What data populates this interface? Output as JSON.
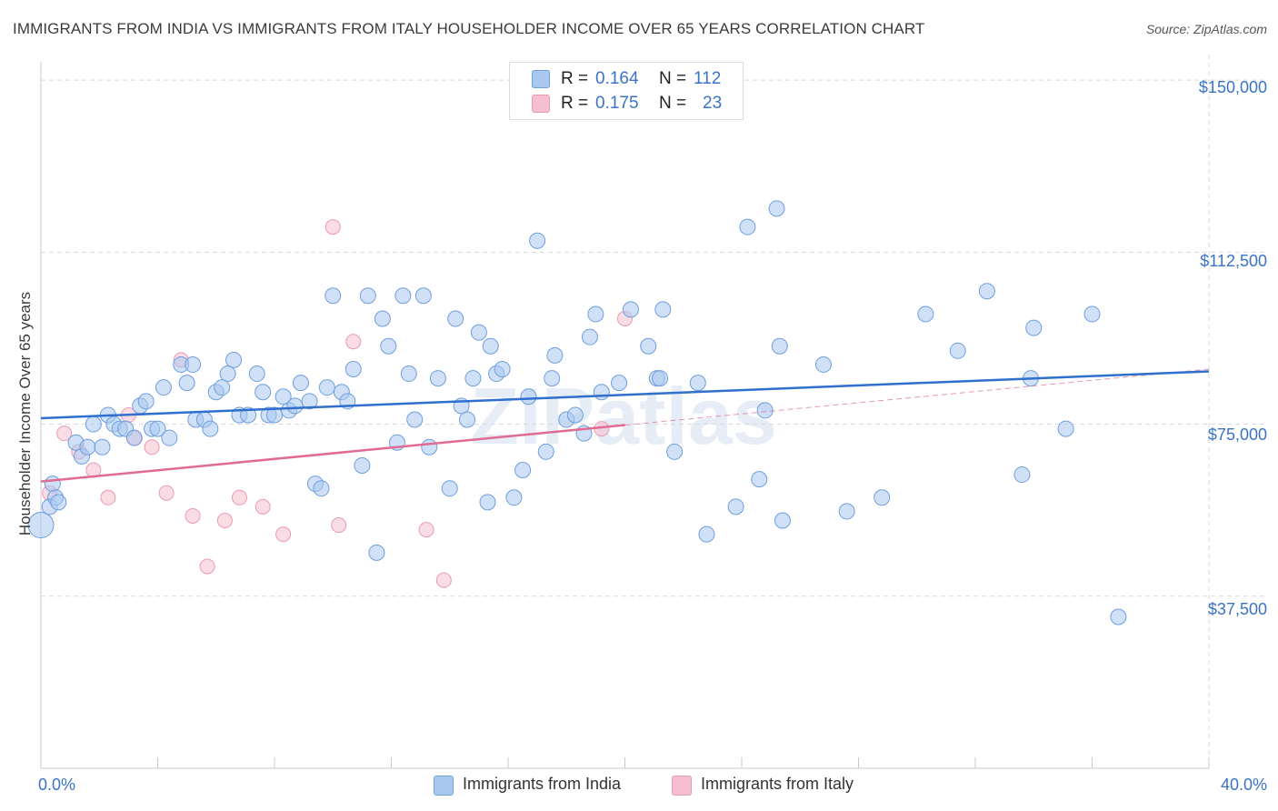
{
  "title": "IMMIGRANTS FROM INDIA VS IMMIGRANTS FROM ITALY HOUSEHOLDER INCOME OVER 65 YEARS CORRELATION CHART",
  "source": "Source: ZipAtlas.com",
  "watermark": "ZIPatlas",
  "colors": {
    "india_fill": "#a9c8f0",
    "india_stroke": "#6f9fdc",
    "india_line": "#2f6fce",
    "italy_fill": "#f6bfd0",
    "italy_stroke": "#e99ab4",
    "italy_line": "#e06b94",
    "tick_text": "#3a73c8",
    "grid": "#d9d9d9"
  },
  "legend": {
    "india": {
      "r_label": "R =",
      "r_value": "0.164",
      "n_label": "N =",
      "n_value": "112",
      "name": "Immigrants from India"
    },
    "italy": {
      "r_label": "R =",
      "r_value": "0.175",
      "n_label": "N =",
      "n_value": "23",
      "name": "Immigrants from Italy"
    }
  },
  "chart_data": {
    "type": "scatter",
    "title": "IMMIGRANTS FROM INDIA VS IMMIGRANTS FROM ITALY HOUSEHOLDER INCOME OVER 65 YEARS CORRELATION CHART",
    "xlabel": "",
    "ylabel": "Householder Income Over 65 years",
    "xlim": [
      0,
      40
    ],
    "ylim": [
      0,
      152000
    ],
    "x_tick_labels": [
      "0.0%",
      "40.0%"
    ],
    "y_ticks": [
      37500,
      75000,
      112500,
      150000
    ],
    "y_tick_labels": [
      "$37,500",
      "$75,000",
      "$112,500",
      "$150,000"
    ],
    "grid": true,
    "legend_position": "top-center",
    "series": [
      {
        "name": "Immigrants from India",
        "r": 0.164,
        "n": 112,
        "trend": {
          "x": [
            0,
            40
          ],
          "y": [
            76300,
            86500
          ]
        },
        "points": [
          [
            0.0,
            53000
          ],
          [
            0.3,
            57000
          ],
          [
            0.4,
            62000
          ],
          [
            0.5,
            59000
          ],
          [
            0.6,
            58000
          ],
          [
            1.2,
            71000
          ],
          [
            1.4,
            68000
          ],
          [
            1.6,
            70000
          ],
          [
            1.8,
            75000
          ],
          [
            2.1,
            70000
          ],
          [
            2.3,
            77000
          ],
          [
            2.5,
            75000
          ],
          [
            2.7,
            74000
          ],
          [
            2.9,
            74000
          ],
          [
            3.2,
            72000
          ],
          [
            3.4,
            79000
          ],
          [
            3.6,
            80000
          ],
          [
            3.8,
            74000
          ],
          [
            4.0,
            74000
          ],
          [
            4.2,
            83000
          ],
          [
            4.4,
            72000
          ],
          [
            4.8,
            88000
          ],
          [
            5.0,
            84000
          ],
          [
            5.2,
            88000
          ],
          [
            5.3,
            76000
          ],
          [
            5.6,
            76000
          ],
          [
            5.8,
            74000
          ],
          [
            6.0,
            82000
          ],
          [
            6.2,
            83000
          ],
          [
            6.4,
            86000
          ],
          [
            6.6,
            89000
          ],
          [
            6.8,
            77000
          ],
          [
            7.1,
            77000
          ],
          [
            7.4,
            86000
          ],
          [
            7.6,
            82000
          ],
          [
            7.8,
            77000
          ],
          [
            8.0,
            77000
          ],
          [
            8.3,
            81000
          ],
          [
            8.5,
            78000
          ],
          [
            8.7,
            79000
          ],
          [
            8.9,
            84000
          ],
          [
            9.2,
            80000
          ],
          [
            9.4,
            62000
          ],
          [
            9.6,
            61000
          ],
          [
            9.8,
            83000
          ],
          [
            10.0,
            103000
          ],
          [
            10.3,
            82000
          ],
          [
            10.5,
            80000
          ],
          [
            10.7,
            87000
          ],
          [
            11.0,
            66000
          ],
          [
            11.2,
            103000
          ],
          [
            11.5,
            47000
          ],
          [
            11.7,
            98000
          ],
          [
            11.9,
            92000
          ],
          [
            12.2,
            71000
          ],
          [
            12.4,
            103000
          ],
          [
            12.6,
            86000
          ],
          [
            12.8,
            76000
          ],
          [
            13.1,
            103000
          ],
          [
            13.3,
            70000
          ],
          [
            13.6,
            85000
          ],
          [
            14.0,
            61000
          ],
          [
            14.2,
            98000
          ],
          [
            14.4,
            79000
          ],
          [
            14.6,
            76000
          ],
          [
            14.8,
            85000
          ],
          [
            15.0,
            95000
          ],
          [
            15.3,
            58000
          ],
          [
            15.4,
            92000
          ],
          [
            15.6,
            86000
          ],
          [
            15.8,
            87000
          ],
          [
            16.2,
            59000
          ],
          [
            16.5,
            65000
          ],
          [
            16.7,
            81000
          ],
          [
            17.0,
            115000
          ],
          [
            17.3,
            69000
          ],
          [
            17.5,
            85000
          ],
          [
            17.6,
            90000
          ],
          [
            18.0,
            76000
          ],
          [
            18.3,
            77000
          ],
          [
            18.6,
            73000
          ],
          [
            18.8,
            94000
          ],
          [
            19.0,
            99000
          ],
          [
            19.2,
            82000
          ],
          [
            19.8,
            84000
          ],
          [
            20.2,
            100000
          ],
          [
            20.8,
            92000
          ],
          [
            21.1,
            85000
          ],
          [
            21.3,
            100000
          ],
          [
            21.2,
            85000
          ],
          [
            21.7,
            69000
          ],
          [
            22.5,
            84000
          ],
          [
            22.8,
            51000
          ],
          [
            23.8,
            57000
          ],
          [
            24.2,
            118000
          ],
          [
            24.6,
            63000
          ],
          [
            24.8,
            78000
          ],
          [
            25.2,
            122000
          ],
          [
            25.3,
            92000
          ],
          [
            25.4,
            54000
          ],
          [
            26.8,
            88000
          ],
          [
            27.6,
            56000
          ],
          [
            28.8,
            59000
          ],
          [
            30.3,
            99000
          ],
          [
            31.4,
            91000
          ],
          [
            32.4,
            104000
          ],
          [
            33.6,
            64000
          ],
          [
            33.9,
            85000
          ],
          [
            34.0,
            96000
          ],
          [
            35.1,
            74000
          ],
          [
            36.0,
            99000
          ],
          [
            36.9,
            33000
          ]
        ]
      },
      {
        "name": "Immigrants from Italy",
        "r": 0.175,
        "n": 23,
        "trend": {
          "x": [
            0,
            20
          ],
          "y": [
            62500,
            74800
          ]
        },
        "trend_extended": {
          "x": [
            20,
            40
          ],
          "y": [
            74800,
            87000
          ]
        },
        "points": [
          [
            0.3,
            60000
          ],
          [
            0.8,
            73000
          ],
          [
            1.3,
            69000
          ],
          [
            1.8,
            65000
          ],
          [
            2.3,
            59000
          ],
          [
            3.0,
            77000
          ],
          [
            3.2,
            72000
          ],
          [
            3.8,
            70000
          ],
          [
            4.3,
            60000
          ],
          [
            4.8,
            89000
          ],
          [
            5.2,
            55000
          ],
          [
            5.7,
            44000
          ],
          [
            6.3,
            54000
          ],
          [
            6.8,
            59000
          ],
          [
            7.6,
            57000
          ],
          [
            8.3,
            51000
          ],
          [
            10.0,
            118000
          ],
          [
            10.2,
            53000
          ],
          [
            10.7,
            93000
          ],
          [
            13.2,
            52000
          ],
          [
            13.8,
            41000
          ],
          [
            19.2,
            74000
          ],
          [
            20.0,
            98000
          ]
        ]
      }
    ]
  }
}
